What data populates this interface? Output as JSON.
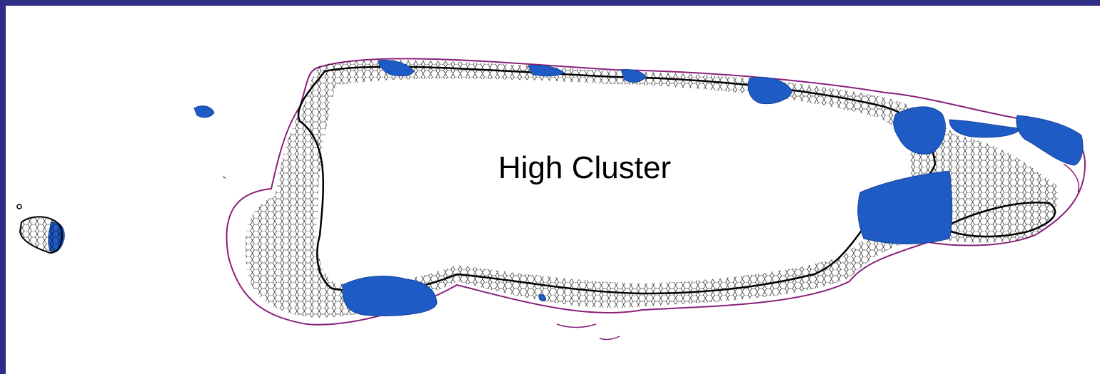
{
  "map": {
    "label": "High Cluster",
    "colors": {
      "background": "#ffffff",
      "border": "#2e2d86",
      "cluster_fill": "#1f5bc4",
      "hex_outline": "#000000",
      "coast_outline": "#8a1f7a"
    }
  }
}
